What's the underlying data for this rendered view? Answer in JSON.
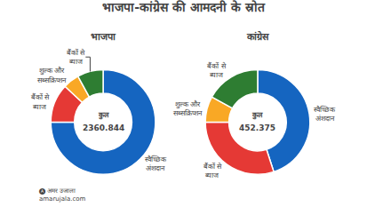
{
  "chart_data": [
    {
      "type": "pie",
      "title": "भाजपा-कांग्रेस की आमदनी के स्रोत",
      "subtitle": "भाजपा",
      "categories": [
        "स्वैच्छिक\nअंशदान",
        "बैंकों से\nब्याज",
        "शुल्क और\nसब्सक्रिप्शन",
        "बैंकों से\nब्याज"
      ],
      "values": [
        75,
        12,
        5,
        8
      ],
      "colors": [
        "#1565c0",
        "#e53935",
        "#f9a825",
        "#2e7d32"
      ],
      "annotations": [
        "कुल",
        "2360.844",
        "🅐 अमर उजाला\namarujala.com"
      ]
    },
    {
      "type": "pie",
      "subtitle": "कांग्रेस",
      "categories": [
        "स्वैच्छिक\nअंशदान",
        "बैंकों से\nब्याज",
        "शुल्क और\nसब्सक्रिप्शन",
        "बैंकों से\nब्याज"
      ],
      "values": [
        45,
        30,
        8,
        17
      ],
      "colors": [
        "#1565c0",
        "#e53935",
        "#f9a825",
        "#2e7d32"
      ],
      "annotations": [
        "कुल",
        "452.375"
      ]
    }
  ]
}
